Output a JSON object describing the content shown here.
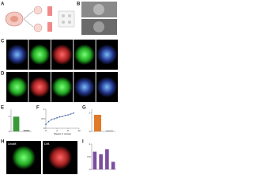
{
  "figure": {
    "panel_labels": [
      "A",
      "B",
      "C",
      "D",
      "E",
      "F",
      "G",
      "H",
      "I"
    ],
    "h_labels": [
      "Undiff.",
      "Diff."
    ]
  },
  "chart_data": [
    {
      "type": "bar",
      "categories": [
        null,
        null
      ],
      "values": [
        1.0,
        0.1
      ],
      "colors": [
        "#3a9a3a",
        "#9a9a9a"
      ],
      "ylim": [
        0,
        1.5
      ],
      "yticks": [
        0,
        1
      ]
    },
    {
      "type": "line",
      "x": [
        0,
        1,
        2,
        3,
        4,
        5,
        6,
        7,
        8,
        9,
        10
      ],
      "values": [
        0.2,
        0.35,
        0.45,
        0.5,
        0.55,
        0.6,
        0.62,
        0.68,
        0.7,
        0.75,
        0.8
      ],
      "color": "#3b5ba5",
      "xlim": [
        0,
        12
      ],
      "xticks": [
        0,
        4,
        8,
        12
      ],
      "ylim": [
        0,
        1
      ],
      "yticks": [
        0,
        0.5,
        1
      ],
      "xlabel": "Weeks in culture"
    },
    {
      "type": "bar",
      "categories": [
        null,
        null
      ],
      "values": [
        0.9,
        0.05
      ],
      "colors": [
        "#e07a2a",
        "#9a9a9a"
      ],
      "ylim": [
        0,
        1.2
      ],
      "yticks": [
        0,
        1
      ]
    },
    {
      "type": "bar",
      "categories": [
        null,
        null,
        null,
        null
      ],
      "values": [
        0.7,
        0.6,
        0.8,
        0.3
      ],
      "colors": [
        "#7b4fa0",
        "#7b4fa0",
        "#7b4fa0",
        "#7b4fa0"
      ],
      "ylim": [
        0,
        1
      ],
      "yticks": [
        0,
        0.5,
        1
      ]
    }
  ]
}
